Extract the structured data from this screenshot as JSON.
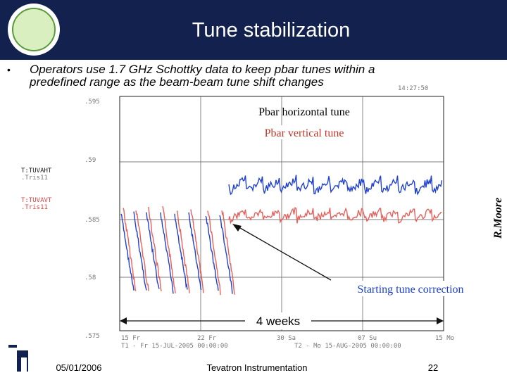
{
  "header": {
    "title": "Tune stabilization"
  },
  "bullet": {
    "line1": "Operators use 1.7 GHz Schottky data to keep pbar tunes within a",
    "line2": "predefined range as the beam-beam tune shift changes"
  },
  "plot": {
    "top_label": "14:27:50",
    "y_labels": [
      ".595",
      ".59",
      ".585",
      ".58",
      ".575"
    ],
    "legend": {
      "h_name": "T:TUVAHT",
      "h_sub": ".Tris11",
      "v_name": "T:TUVAVT",
      "v_sub": ".Tris11"
    },
    "x_labels": [
      "15 Fr",
      "22 Fr",
      "30 Sa",
      "07 Su",
      "15 Mo"
    ],
    "t1": "T1 - Fr 15-JUL-2005 00:00:00",
    "t2": "T2 - Mo 15-AUG-2005 00:00:00",
    "annotations": {
      "horizontal": "Pbar horizontal tune",
      "vertical": "Pbar vertical tune",
      "start": "Starting tune correction",
      "span": "4 weeks"
    },
    "credit": "R.Moore"
  },
  "footer": {
    "date": "05/01/2006",
    "event": "Tevatron Instrumentation",
    "page": "22"
  }
}
